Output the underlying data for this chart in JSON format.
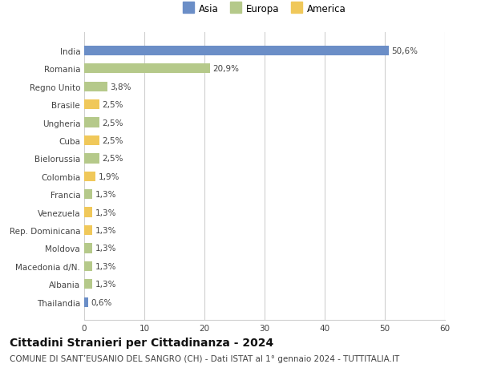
{
  "categories": [
    "Thailandia",
    "Albania",
    "Macedonia d/N.",
    "Moldova",
    "Rep. Dominicana",
    "Venezuela",
    "Francia",
    "Colombia",
    "Bielorussia",
    "Cuba",
    "Ungheria",
    "Brasile",
    "Regno Unito",
    "Romania",
    "India"
  ],
  "values": [
    0.6,
    1.3,
    1.3,
    1.3,
    1.3,
    1.3,
    1.3,
    1.9,
    2.5,
    2.5,
    2.5,
    2.5,
    3.8,
    20.9,
    50.6
  ],
  "labels": [
    "0,6%",
    "1,3%",
    "1,3%",
    "1,3%",
    "1,3%",
    "1,3%",
    "1,3%",
    "1,9%",
    "2,5%",
    "2,5%",
    "2,5%",
    "2,5%",
    "3,8%",
    "20,9%",
    "50,6%"
  ],
  "colors": [
    "#6b8ec7",
    "#b5c98a",
    "#b5c98a",
    "#b5c98a",
    "#f0c85a",
    "#f0c85a",
    "#b5c98a",
    "#f0c85a",
    "#b5c98a",
    "#f0c85a",
    "#b5c98a",
    "#f0c85a",
    "#b5c98a",
    "#b5c98a",
    "#6b8ec7"
  ],
  "legend_labels": [
    "Asia",
    "Europa",
    "America"
  ],
  "legend_colors": [
    "#6b8ec7",
    "#b5c98a",
    "#f0c85a"
  ],
  "title": "Cittadini Stranieri per Cittadinanza - 2024",
  "subtitle": "COMUNE DI SANT’EUSANIO DEL SANGRO (CH) - Dati ISTAT al 1° gennaio 2024 - TUTTITALIA.IT",
  "xlim": [
    0,
    60
  ],
  "xticks": [
    0,
    10,
    20,
    30,
    40,
    50,
    60
  ],
  "background_color": "#ffffff",
  "grid_color": "#d0d0d0",
  "bar_height": 0.55,
  "title_fontsize": 10,
  "subtitle_fontsize": 7.5,
  "label_fontsize": 7.5,
  "tick_fontsize": 7.5,
  "legend_fontsize": 8.5
}
